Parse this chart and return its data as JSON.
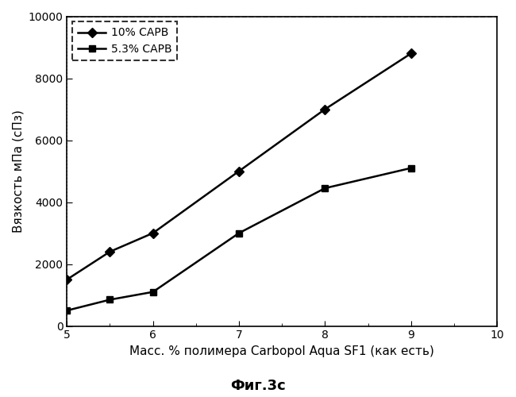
{
  "series1_label": "10% САРВ",
  "series2_label": "5.3% САРВ",
  "x_data": [
    5,
    5.5,
    6,
    7,
    8,
    9
  ],
  "y1_data": [
    1500,
    2400,
    3000,
    5000,
    7000,
    8800
  ],
  "y2_data": [
    500,
    850,
    1100,
    3000,
    4450,
    5100
  ],
  "xlabel": "Масс. % полимера Carbopol Aqua SF1 (как есть)",
  "ylabel": "Вязкость мПа (сПз)",
  "title": "Фиг.3с",
  "xlim": [
    5,
    10
  ],
  "ylim": [
    0,
    10000
  ],
  "xticks": [
    5,
    6,
    7,
    8,
    9,
    10
  ],
  "yticks": [
    0,
    2000,
    4000,
    6000,
    8000,
    10000
  ],
  "line_color": "#000000",
  "bg_color": "#ffffff"
}
